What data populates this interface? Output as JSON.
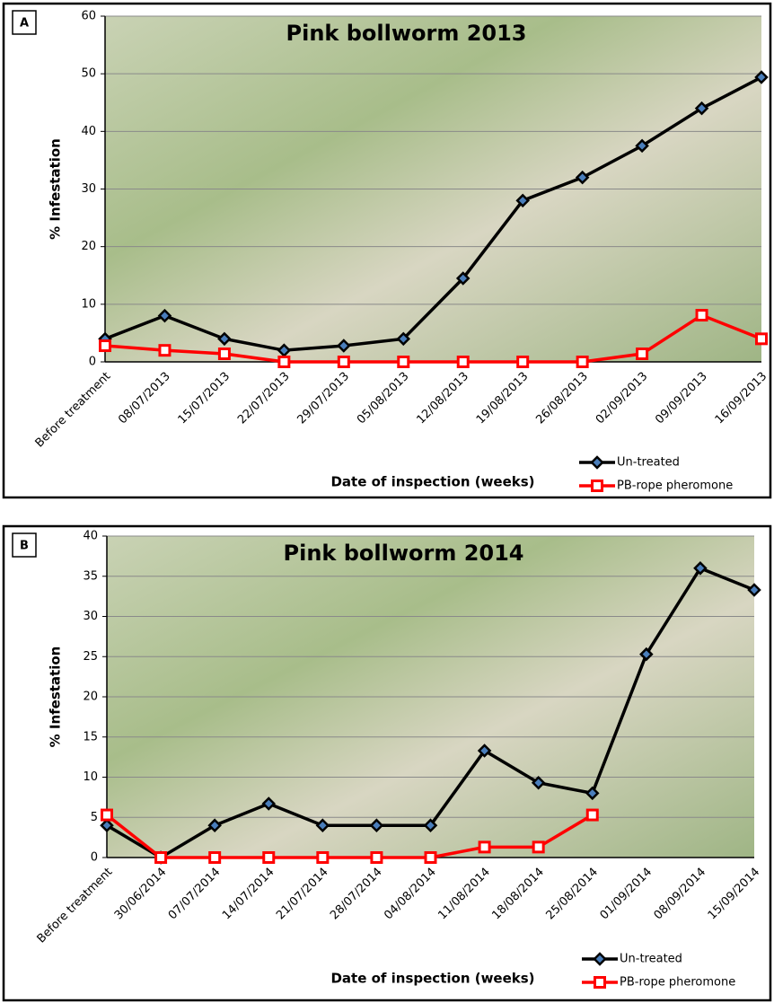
{
  "chart_data": [
    {
      "type": "line",
      "panel_label": "A",
      "title": "Pink bollworm 2013",
      "x_label": "Date of inspection (weeks)",
      "y_label": "% Infestation",
      "categories": [
        "Before treatment",
        "08/07/2013",
        "15/07/2013",
        "22/07/2013",
        "29/07/2013",
        "05/08/2013",
        "12/08/2013",
        "19/08/2013",
        "26/08/2013",
        "02/09/2013",
        "09/09/2013",
        "16/09/2013"
      ],
      "series": [
        {
          "name": "Un-treated",
          "color": "#000000",
          "marker": "diamond",
          "marker_fill": "#4a7ebb",
          "values": [
            4,
            8,
            4,
            2,
            2.8,
            4,
            14.5,
            28,
            32,
            37.5,
            44,
            49.4
          ]
        },
        {
          "name": "PB-rope pheromone",
          "color": "#ff0000",
          "marker": "square",
          "marker_fill": "#ffffff",
          "values": [
            2.8,
            2,
            1.4,
            0,
            0,
            0,
            0,
            0,
            0,
            1.4,
            8.1,
            4
          ]
        }
      ],
      "ylim": [
        0,
        60
      ],
      "yticks": [
        0,
        10,
        20,
        30,
        40,
        50,
        60
      ],
      "grid": true,
      "legend": "bottom-right"
    },
    {
      "type": "line",
      "panel_label": "B",
      "title": "Pink bollworm 2014",
      "x_label": "Date of inspection (weeks)",
      "y_label": "% Infestation",
      "categories": [
        "Before treatment",
        "30/06/2014",
        "07/07/2014",
        "14/07/2014",
        "21/07/2014",
        "28/07/2014",
        "04/08/2014",
        "11/08/2014",
        "18/08/2014",
        "25/08/2014",
        "01/09/2014",
        "08/09/2014",
        "15/09/2014"
      ],
      "series": [
        {
          "name": "Un-treated",
          "color": "#000000",
          "marker": "diamond",
          "marker_fill": "#4a7ebb",
          "values": [
            4,
            0,
            4,
            6.7,
            4,
            4,
            4,
            13.3,
            9.3,
            8,
            25.3,
            36,
            33.3
          ]
        },
        {
          "name": "PB-rope pheromone",
          "color": "#ff0000",
          "marker": "square",
          "marker_fill": "#ffffff",
          "values": [
            5.3,
            0,
            0,
            0,
            0,
            0,
            0,
            1.3,
            1.3,
            5.3,
            null,
            null,
            null
          ]
        }
      ],
      "ylim": [
        0,
        40
      ],
      "yticks": [
        0,
        5,
        10,
        15,
        20,
        25,
        30,
        35,
        40
      ],
      "grid": true,
      "legend": "bottom-right"
    }
  ]
}
